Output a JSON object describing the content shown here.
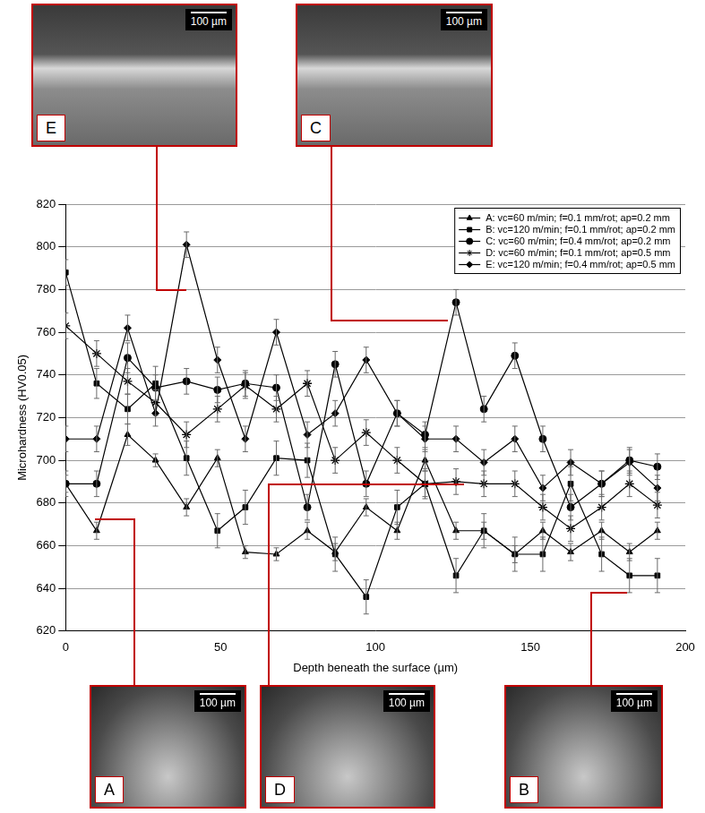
{
  "chart_data": {
    "type": "line",
    "x_label": "Depth beneath the surface (µm)",
    "y_label": "Microhardness (HV0.05)",
    "x": [
      0,
      10,
      20,
      29,
      39,
      49,
      58,
      68,
      78,
      87,
      97,
      107,
      116,
      126,
      135,
      145,
      154,
      163,
      173,
      182,
      191
    ],
    "xlim": [
      0,
      200
    ],
    "xticks": [
      0,
      50,
      100,
      150,
      200
    ],
    "ylim": [
      620,
      820
    ],
    "yticks": [
      620,
      640,
      660,
      680,
      700,
      720,
      740,
      760,
      780,
      800,
      820
    ],
    "grid": "y",
    "legend": "top-right",
    "series": [
      {
        "name": "A: vc=60 m/min; f=0.1 mm/rot; ap=0.2 mm",
        "color": "#000000",
        "marker": "triangle",
        "values": [
          689,
          667,
          712,
          700,
          678,
          701,
          657,
          656,
          667,
          657,
          678,
          667,
          700,
          667,
          667,
          656,
          667,
          657,
          667,
          657,
          667
        ],
        "errors": [
          4,
          4,
          5,
          3,
          4,
          4,
          3,
          3,
          4,
          4,
          4,
          4,
          5,
          4,
          4,
          4,
          4,
          4,
          4,
          4,
          4
        ]
      },
      {
        "name": "B: vc=120 m/min; f=0.1 mm/rot; ap=0.2 mm",
        "color": "#000000",
        "marker": "square",
        "values": [
          788,
          736,
          724,
          736,
          701,
          667,
          678,
          701,
          700,
          656,
          636,
          678,
          689,
          646,
          667,
          656,
          656,
          689,
          656,
          646,
          646
        ],
        "errors": [
          6,
          7,
          7,
          8,
          8,
          8,
          8,
          8,
          8,
          8,
          8,
          8,
          7,
          8,
          8,
          8,
          8,
          8,
          8,
          8,
          8
        ]
      },
      {
        "name": "C: vc=60 m/min; f=0.4 mm/rot; ap=0.2 mm",
        "color": "#000000",
        "marker": "circle",
        "values": [
          689,
          689,
          748,
          734,
          737,
          733,
          736,
          734,
          678,
          745,
          689,
          722,
          712,
          774,
          724,
          749,
          710,
          678,
          689,
          700,
          697
        ],
        "errors": [
          6,
          6,
          7,
          6,
          6,
          6,
          6,
          6,
          6,
          6,
          6,
          6,
          6,
          6,
          6,
          6,
          6,
          6,
          6,
          6,
          6
        ]
      },
      {
        "name": "D: vc=60 m/min; f=0.1 mm/rot; ap=0.5 mm",
        "color": "#000000",
        "marker": "star",
        "values": [
          763,
          750,
          737,
          727,
          712,
          724,
          735,
          724,
          736,
          700,
          713,
          700,
          689,
          690,
          689,
          689,
          678,
          668,
          678,
          689,
          679
        ],
        "errors": [
          6,
          6,
          6,
          6,
          6,
          6,
          6,
          6,
          6,
          6,
          6,
          6,
          6,
          6,
          6,
          6,
          6,
          6,
          6,
          6,
          6
        ]
      },
      {
        "name": "E: vc=120 m/min; f=0.4 mm/rot; ap=0.5 mm",
        "color": "#000000",
        "marker": "diamond",
        "values": [
          710,
          710,
          762,
          722,
          801,
          747,
          710,
          760,
          712,
          722,
          747,
          722,
          710,
          710,
          699,
          710,
          687,
          699,
          689,
          699,
          687
        ],
        "errors": [
          6,
          6,
          6,
          6,
          6,
          6,
          6,
          6,
          6,
          6,
          6,
          6,
          6,
          6,
          6,
          6,
          6,
          6,
          6,
          6,
          6
        ]
      }
    ],
    "annotations": [
      {
        "text": "E",
        "scale_bar": "100 µm"
      },
      {
        "text": "C",
        "scale_bar": "100 µm"
      },
      {
        "text": "A",
        "scale_bar": "100 µm"
      },
      {
        "text": "D",
        "scale_bar": "100 µm"
      },
      {
        "text": "B",
        "scale_bar": "100 µm"
      }
    ]
  }
}
